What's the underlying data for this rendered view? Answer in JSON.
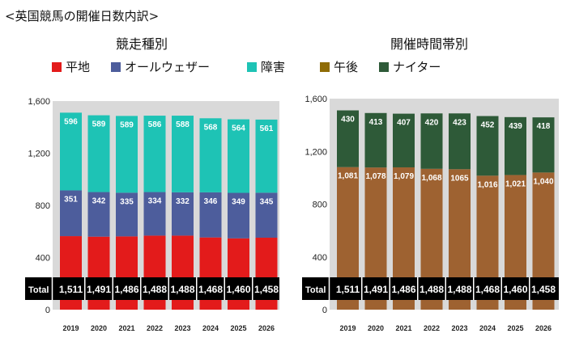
{
  "title": "<英国競馬の開催日数内訳>",
  "legend": [
    {
      "label": "平地",
      "color": "#e31b1b"
    },
    {
      "label": "オールウェザー",
      "color": "#4d5d9c"
    },
    {
      "label": "障害",
      "color": "#1ec3b5"
    },
    {
      "label": "午後",
      "color": "#8f6c06"
    },
    {
      "label": "ナイター",
      "color": "#2e5a38"
    }
  ],
  "chart_data": [
    {
      "type": "bar",
      "stacked": true,
      "title": "競走種別",
      "categories": [
        "2019",
        "2020",
        "2021",
        "2022",
        "2023",
        "2024",
        "2025",
        "2026"
      ],
      "series": [
        {
          "name": "平地",
          "color": "#e31b1b",
          "values": [
            564,
            560,
            562,
            568,
            568,
            554,
            547,
            552
          ]
        },
        {
          "name": "オールウェザー",
          "color": "#4d5d9c",
          "values": [
            351,
            342,
            335,
            334,
            332,
            346,
            349,
            345
          ]
        },
        {
          "name": "障害",
          "color": "#1ec3b5",
          "values": [
            596,
            589,
            589,
            586,
            588,
            568,
            564,
            561
          ]
        }
      ],
      "totals_label": "Total",
      "totals": [
        "1,511",
        "1,491",
        "1,486",
        "1,488",
        "1,488",
        "1,468",
        "1,460",
        "1,458"
      ],
      "ylim": [
        0,
        1600
      ],
      "yticks": [
        "0",
        "400",
        "800",
        "1,200",
        "1,600"
      ]
    },
    {
      "type": "bar",
      "stacked": true,
      "title": "開催時間帯別",
      "categories": [
        "2019",
        "2020",
        "2021",
        "2022",
        "2023",
        "2024",
        "2025",
        "2026"
      ],
      "series": [
        {
          "name": "午後",
          "color": "#9e6231",
          "values": [
            1081,
            1078,
            1079,
            1068,
            1065,
            1016,
            1021,
            1040
          ],
          "labels": [
            "1,081",
            "1,078",
            "1,079",
            "1,068",
            "1065",
            "1,016",
            "1,021",
            "1,040"
          ]
        },
        {
          "name": "ナイター",
          "color": "#2e5a38",
          "values": [
            430,
            413,
            407,
            420,
            423,
            452,
            439,
            418
          ]
        }
      ],
      "totals_label": "Total",
      "totals": [
        "1,511",
        "1,491",
        "1,486",
        "1,488",
        "1,488",
        "1,468",
        "1,460",
        "1,458"
      ],
      "ylim": [
        0,
        1600
      ],
      "yticks": [
        "0",
        "400",
        "800",
        "1,200",
        "1,600"
      ]
    }
  ]
}
